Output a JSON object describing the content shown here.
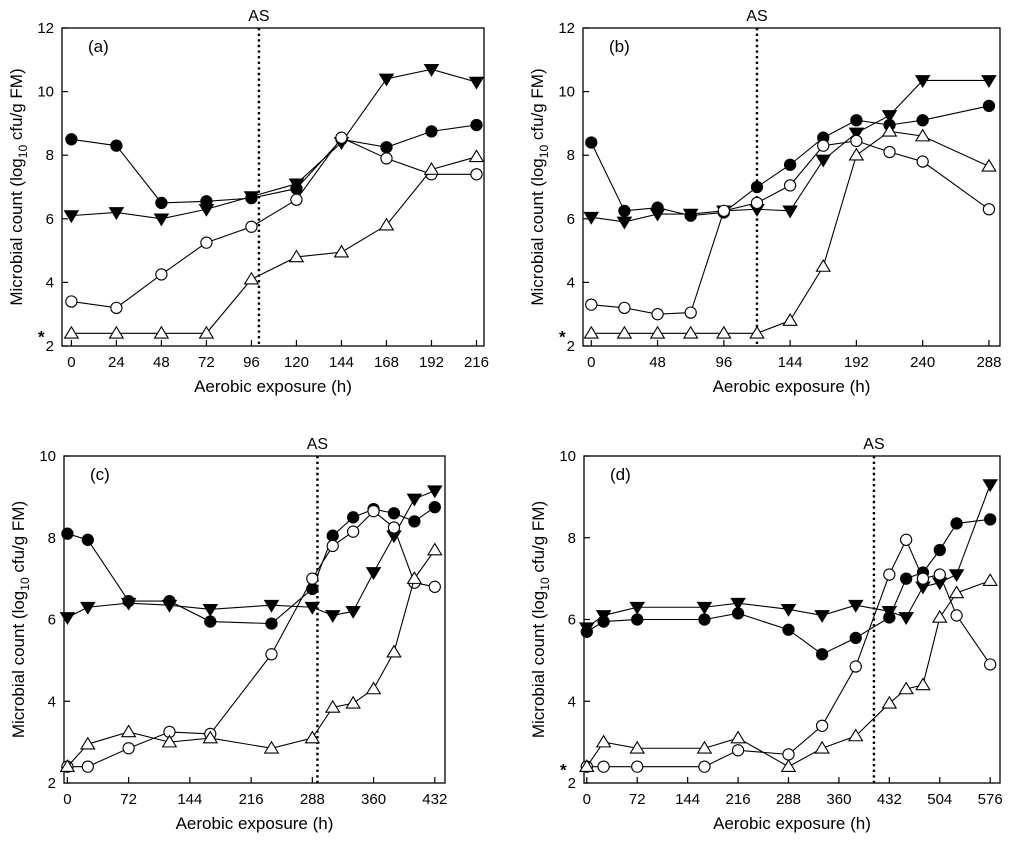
{
  "chart_data": [
    {
      "type": "line",
      "panel": "(a)",
      "xlabel": "Aerobic exposure (h)",
      "ylabel_main": "Microbial count (log",
      "ylabel_sub": "10",
      "ylabel_tail": " cfu/g FM)",
      "xlim": [
        -5,
        220
      ],
      "ylim": [
        2,
        12
      ],
      "xticks": [
        0,
        24,
        48,
        72,
        96,
        120,
        144,
        168,
        192,
        216
      ],
      "yticks": [
        2,
        4,
        6,
        8,
        10,
        12
      ],
      "as_line": {
        "label": "AS",
        "x": 100
      },
      "detection_limit": {
        "label": "*",
        "y": 2.4
      },
      "series": [
        {
          "marker": "filled-circle",
          "x": [
            0,
            24,
            48,
            72,
            96,
            120,
            144,
            168,
            192,
            216
          ],
          "y": [
            8.5,
            8.3,
            6.5,
            6.55,
            6.65,
            6.95,
            8.5,
            8.25,
            8.75,
            8.95
          ]
        },
        {
          "marker": "filled-triangle-down",
          "x": [
            0,
            24,
            48,
            72,
            96,
            120,
            144,
            168,
            192,
            216
          ],
          "y": [
            6.1,
            6.2,
            6.0,
            6.3,
            6.7,
            7.1,
            8.4,
            10.4,
            10.7,
            10.3
          ]
        },
        {
          "marker": "open-circle",
          "x": [
            0,
            24,
            48,
            72,
            96,
            120,
            144,
            168,
            192,
            216
          ],
          "y": [
            3.4,
            3.2,
            4.25,
            5.25,
            5.75,
            6.6,
            8.55,
            7.9,
            7.4,
            7.4
          ]
        },
        {
          "marker": "open-triangle-up",
          "x": [
            0,
            24,
            48,
            72,
            96,
            120,
            144,
            168,
            192,
            216
          ],
          "y": [
            2.4,
            2.4,
            2.4,
            2.4,
            4.1,
            4.8,
            4.95,
            5.8,
            7.55,
            7.95
          ]
        }
      ]
    },
    {
      "type": "line",
      "panel": "(b)",
      "xlabel": "Aerobic exposure (h)",
      "ylabel_main": "Microbial count (log",
      "ylabel_sub": "10",
      "ylabel_tail": " cfu/g FM)",
      "xlim": [
        -6,
        296
      ],
      "ylim": [
        2,
        12
      ],
      "xticks": [
        0,
        48,
        96,
        144,
        192,
        240,
        288
      ],
      "yticks": [
        2,
        4,
        6,
        8,
        10,
        12
      ],
      "as_line": {
        "label": "AS",
        "x": 120
      },
      "detection_limit": {
        "label": "*",
        "y": 2.4
      },
      "series": [
        {
          "marker": "filled-circle",
          "x": [
            0,
            24,
            48,
            72,
            96,
            120,
            144,
            168,
            192,
            216,
            240,
            288
          ],
          "y": [
            8.4,
            6.25,
            6.35,
            6.1,
            6.2,
            7.0,
            7.7,
            8.55,
            9.1,
            8.95,
            9.1,
            9.55
          ]
        },
        {
          "marker": "filled-triangle-down",
          "x": [
            0,
            24,
            48,
            72,
            96,
            120,
            144,
            168,
            192,
            216,
            240,
            288
          ],
          "y": [
            6.05,
            5.9,
            6.15,
            6.15,
            6.25,
            6.3,
            6.25,
            7.85,
            8.7,
            9.25,
            10.35,
            10.35
          ]
        },
        {
          "marker": "open-circle",
          "x": [
            0,
            24,
            48,
            72,
            96,
            120,
            144,
            168,
            192,
            216,
            240,
            288
          ],
          "y": [
            3.3,
            3.2,
            3.0,
            3.05,
            6.25,
            6.5,
            7.05,
            8.3,
            8.45,
            8.1,
            7.8,
            6.3
          ]
        },
        {
          "marker": "open-triangle-up",
          "x": [
            0,
            24,
            48,
            72,
            96,
            120,
            144,
            168,
            192,
            216,
            240,
            288
          ],
          "y": [
            2.4,
            2.4,
            2.4,
            2.4,
            2.4,
            2.4,
            2.8,
            4.5,
            8.0,
            8.75,
            8.6,
            7.65
          ]
        }
      ]
    },
    {
      "type": "line",
      "panel": "(c)",
      "xlabel": "Aerobic exposure (h)",
      "ylabel_main": "Microbial count (log",
      "ylabel_sub": "10",
      "ylabel_tail": " cfu/g FM)",
      "xlim": [
        -4,
        444
      ],
      "ylim": [
        2,
        10
      ],
      "xticks": [
        0,
        72,
        144,
        216,
        288,
        360,
        432
      ],
      "yticks": [
        2,
        4,
        6,
        8,
        10
      ],
      "as_line": {
        "label": "AS",
        "x": 294
      },
      "detection_limit": null,
      "series": [
        {
          "marker": "filled-circle",
          "x": [
            0,
            24,
            72,
            120,
            168,
            240,
            288,
            312,
            336,
            360,
            384,
            408,
            432
          ],
          "y": [
            8.1,
            7.95,
            6.45,
            6.45,
            5.95,
            5.9,
            6.75,
            8.05,
            8.5,
            8.7,
            8.6,
            8.4,
            8.75
          ]
        },
        {
          "marker": "filled-triangle-down",
          "x": [
            0,
            24,
            72,
            120,
            168,
            240,
            288,
            312,
            336,
            360,
            384,
            408,
            432
          ],
          "y": [
            6.05,
            6.3,
            6.4,
            6.35,
            6.25,
            6.35,
            6.3,
            6.1,
            6.2,
            7.15,
            8.05,
            8.95,
            9.15
          ]
        },
        {
          "marker": "open-circle",
          "x": [
            0,
            24,
            72,
            120,
            168,
            240,
            288,
            312,
            336,
            360,
            384,
            408,
            432
          ],
          "y": [
            2.4,
            2.4,
            2.85,
            3.25,
            3.2,
            5.15,
            7.0,
            7.8,
            8.15,
            8.65,
            8.25,
            6.9,
            6.8
          ]
        },
        {
          "marker": "open-triangle-up",
          "x": [
            0,
            24,
            72,
            120,
            168,
            240,
            288,
            312,
            336,
            360,
            384,
            408,
            432
          ],
          "y": [
            2.4,
            2.95,
            3.25,
            3.0,
            3.1,
            2.85,
            3.1,
            3.85,
            3.95,
            4.3,
            5.2,
            7.0,
            7.7
          ]
        }
      ]
    },
    {
      "type": "line",
      "panel": "(d)",
      "xlabel": "Aerobic exposure (h)",
      "ylabel_main": "Microbial count (log",
      "ylabel_sub": "10",
      "ylabel_tail": " cfu/g FM)",
      "xlim": [
        -4,
        590
      ],
      "ylim": [
        2,
        10
      ],
      "xticks": [
        0,
        72,
        144,
        216,
        288,
        360,
        432,
        504,
        576
      ],
      "yticks": [
        2,
        4,
        6,
        8,
        10
      ],
      "as_line": {
        "label": "AS",
        "x": 410
      },
      "detection_limit": {
        "label": "*",
        "y": 2.4
      },
      "series": [
        {
          "marker": "filled-circle",
          "x": [
            0,
            24,
            72,
            168,
            216,
            288,
            336,
            384,
            432,
            456,
            480,
            504,
            528,
            576
          ],
          "y": [
            5.7,
            5.95,
            6.0,
            6.0,
            6.15,
            5.75,
            5.15,
            5.55,
            6.05,
            7.0,
            7.15,
            7.7,
            8.35,
            8.45
          ]
        },
        {
          "marker": "filled-triangle-down",
          "x": [
            0,
            24,
            72,
            168,
            216,
            288,
            336,
            384,
            432,
            456,
            480,
            504,
            528,
            576
          ],
          "y": [
            5.8,
            6.1,
            6.3,
            6.3,
            6.4,
            6.25,
            6.1,
            6.35,
            6.2,
            6.05,
            6.8,
            6.9,
            7.1,
            9.3
          ]
        },
        {
          "marker": "open-circle",
          "x": [
            0,
            24,
            72,
            168,
            216,
            288,
            336,
            384,
            432,
            456,
            480,
            504,
            528,
            576
          ],
          "y": [
            2.4,
            2.4,
            2.4,
            2.4,
            2.8,
            2.7,
            3.4,
            4.85,
            7.1,
            7.95,
            7.0,
            7.1,
            6.1,
            4.9
          ]
        },
        {
          "marker": "open-triangle-up",
          "x": [
            0,
            24,
            72,
            168,
            216,
            288,
            336,
            384,
            432,
            456,
            480,
            504,
            528,
            576
          ],
          "y": [
            2.4,
            3.0,
            2.85,
            2.85,
            3.1,
            2.4,
            2.85,
            3.15,
            3.95,
            4.3,
            4.4,
            6.05,
            6.65,
            6.95
          ]
        }
      ]
    }
  ]
}
